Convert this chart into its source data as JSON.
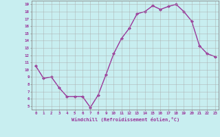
{
  "x": [
    0,
    1,
    2,
    3,
    4,
    5,
    6,
    7,
    8,
    9,
    10,
    11,
    12,
    13,
    14,
    15,
    16,
    17,
    18,
    19,
    20,
    21,
    22,
    23
  ],
  "y": [
    10.5,
    8.8,
    9.0,
    7.5,
    6.3,
    6.3,
    6.3,
    4.8,
    6.5,
    9.3,
    12.2,
    14.3,
    15.7,
    17.7,
    18.0,
    18.8,
    18.3,
    18.7,
    19.0,
    18.0,
    16.7,
    13.3,
    12.2,
    11.8
  ],
  "line_color": "#993399",
  "marker": "D",
  "markersize": 2.0,
  "linewidth": 1.0,
  "bg_color": "#c8eef0",
  "grid_color": "#aaaaaa",
  "xlabel": "Windchill (Refroidissement éolien,°C)",
  "xlabel_color": "#993399",
  "tick_color": "#993399",
  "ytick_min": 5,
  "ytick_max": 19,
  "xtick_min": 0,
  "xtick_max": 23
}
